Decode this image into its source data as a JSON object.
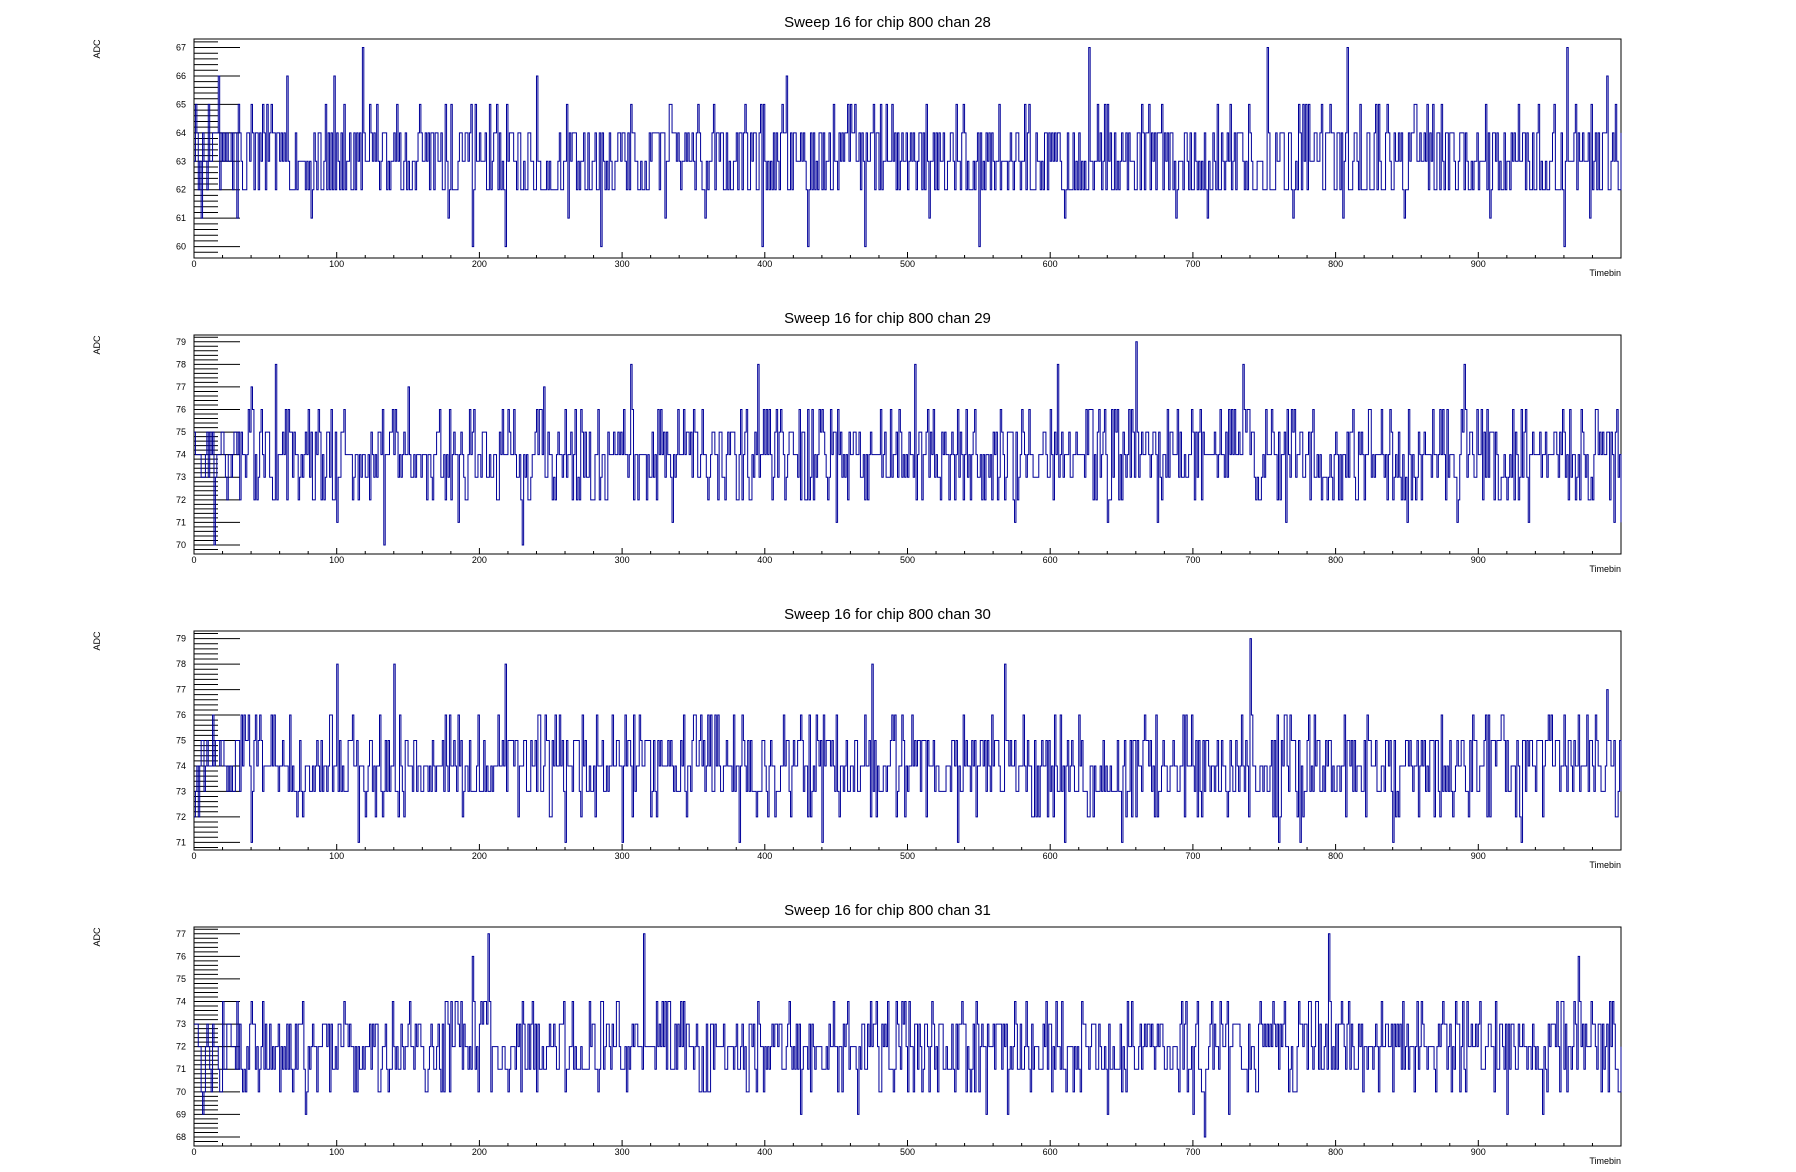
{
  "chart_data": [
    {
      "type": "line",
      "title": "Sweep 16 for chip 800 chan 28",
      "xlabel": "Timebin",
      "ylabel": "ADC",
      "xlim": [
        0,
        1000
      ],
      "ylim": [
        59.6,
        67.3
      ],
      "x_ticks": [
        0,
        100,
        200,
        300,
        400,
        500,
        600,
        700,
        800,
        900
      ],
      "y_ticks": [
        60,
        61,
        62,
        63,
        64,
        65,
        66,
        67
      ],
      "grid": false,
      "color": "#000099",
      "series": [
        {
          "baseline": 63,
          "noise_levels": [
            62,
            63,
            64,
            62,
            63,
            64,
            63,
            62,
            64,
            65,
            63,
            62,
            64
          ],
          "spikes": [
            [
              5,
              61
            ],
            [
              10,
              65
            ],
            [
              17,
              66
            ],
            [
              30,
              61
            ],
            [
              65,
              66
            ],
            [
              82,
              61
            ],
            [
              98,
              66
            ],
            [
              118,
              67
            ],
            [
              142,
              65
            ],
            [
              178,
              61
            ],
            [
              195,
              60
            ],
            [
              218,
              60
            ],
            [
              240,
              66
            ],
            [
              262,
              61
            ],
            [
              285,
              60
            ],
            [
              330,
              61
            ],
            [
              358,
              61
            ],
            [
              398,
              60
            ],
            [
              415,
              66
            ],
            [
              430,
              60
            ],
            [
              470,
              60
            ],
            [
              515,
              61
            ],
            [
              550,
              60
            ],
            [
              610,
              61
            ],
            [
              627,
              67
            ],
            [
              688,
              61
            ],
            [
              710,
              61
            ],
            [
              752,
              67
            ],
            [
              770,
              61
            ],
            [
              805,
              61
            ],
            [
              808,
              67
            ],
            [
              848,
              61
            ],
            [
              908,
              61
            ],
            [
              960,
              60
            ],
            [
              962,
              67
            ],
            [
              978,
              61
            ],
            [
              990,
              66
            ]
          ],
          "seed": 2816
        }
      ]
    },
    {
      "type": "line",
      "title": "Sweep 16 for chip 800 chan 29",
      "xlabel": "Timebin",
      "ylabel": "ADC",
      "xlim": [
        0,
        1000
      ],
      "ylim": [
        69.6,
        79.3
      ],
      "x_ticks": [
        0,
        100,
        200,
        300,
        400,
        500,
        600,
        700,
        800,
        900
      ],
      "y_ticks": [
        70,
        71,
        72,
        73,
        74,
        75,
        76,
        77,
        78,
        79
      ],
      "grid": false,
      "color": "#000099",
      "series": [
        {
          "baseline": 74,
          "noise_levels": [
            73,
            74,
            75,
            74,
            73,
            75,
            74,
            72,
            76,
            74,
            73,
            75,
            74,
            72,
            76
          ],
          "spikes": [
            [
              14,
              70
            ],
            [
              40,
              77
            ],
            [
              57,
              78
            ],
            [
              100,
              71
            ],
            [
              133,
              70
            ],
            [
              150,
              77
            ],
            [
              185,
              71
            ],
            [
              230,
              70
            ],
            [
              245,
              77
            ],
            [
              306,
              78
            ],
            [
              335,
              71
            ],
            [
              395,
              78
            ],
            [
              450,
              71
            ],
            [
              505,
              78
            ],
            [
              575,
              71
            ],
            [
              605,
              78
            ],
            [
              640,
              71
            ],
            [
              660,
              79
            ],
            [
              675,
              71
            ],
            [
              735,
              78
            ],
            [
              765,
              71
            ],
            [
              850,
              71
            ],
            [
              885,
              71
            ],
            [
              890,
              78
            ],
            [
              935,
              71
            ],
            [
              995,
              71
            ],
            [
              1000,
              71
            ]
          ],
          "seed": 2917
        }
      ]
    },
    {
      "type": "line",
      "title": "Sweep 16 for chip 800 chan 30",
      "xlabel": "Timebin",
      "ylabel": "ADC",
      "xlim": [
        0,
        1000
      ],
      "ylim": [
        70.7,
        79.3
      ],
      "x_ticks": [
        0,
        100,
        200,
        300,
        400,
        500,
        600,
        700,
        800,
        900
      ],
      "y_ticks": [
        71,
        72,
        73,
        74,
        75,
        76,
        77,
        78,
        79
      ],
      "grid": false,
      "color": "#000099",
      "series": [
        {
          "baseline": 74,
          "noise_levels": [
            73,
            74,
            75,
            74,
            72,
            76,
            74,
            73,
            75,
            74,
            73,
            75
          ],
          "spikes": [
            [
              40,
              71
            ],
            [
              100,
              78
            ],
            [
              115,
              71
            ],
            [
              140,
              78
            ],
            [
              218,
              78
            ],
            [
              260,
              71
            ],
            [
              300,
              71
            ],
            [
              382,
              71
            ],
            [
              440,
              71
            ],
            [
              475,
              78
            ],
            [
              535,
              71
            ],
            [
              568,
              78
            ],
            [
              610,
              71
            ],
            [
              650,
              71
            ],
            [
              740,
              79
            ],
            [
              760,
              71
            ],
            [
              775,
              71
            ],
            [
              840,
              71
            ],
            [
              930,
              71
            ],
            [
              990,
              77
            ]
          ],
          "seed": 3018
        }
      ]
    },
    {
      "type": "line",
      "title": "Sweep 16 for chip 800 chan 31",
      "xlabel": "Timebin",
      "ylabel": "ADC",
      "xlim": [
        0,
        1000
      ],
      "ylim": [
        67.6,
        77.3
      ],
      "x_ticks": [
        0,
        100,
        200,
        300,
        400,
        500,
        600,
        700,
        800,
        900
      ],
      "y_ticks": [
        68,
        69,
        70,
        71,
        72,
        73,
        74,
        75,
        76,
        77
      ],
      "grid": false,
      "color": "#000099",
      "series": [
        {
          "baseline": 72,
          "noise_levels": [
            71,
            72,
            73,
            72,
            71,
            73,
            74,
            72,
            70,
            72,
            73,
            71
          ],
          "spikes": [
            [
              6,
              69
            ],
            [
              78,
              69
            ],
            [
              195,
              76
            ],
            [
              206,
              77
            ],
            [
              315,
              77
            ],
            [
              425,
              69
            ],
            [
              465,
              69
            ],
            [
              510,
              70
            ],
            [
              555,
              69
            ],
            [
              570,
              69
            ],
            [
              640,
              69
            ],
            [
              700,
              69
            ],
            [
              708,
              68
            ],
            [
              725,
              69
            ],
            [
              795,
              77
            ],
            [
              830,
              70
            ],
            [
              920,
              69
            ],
            [
              945,
              69
            ],
            [
              970,
              76
            ]
          ],
          "seed": 3119
        }
      ]
    }
  ]
}
